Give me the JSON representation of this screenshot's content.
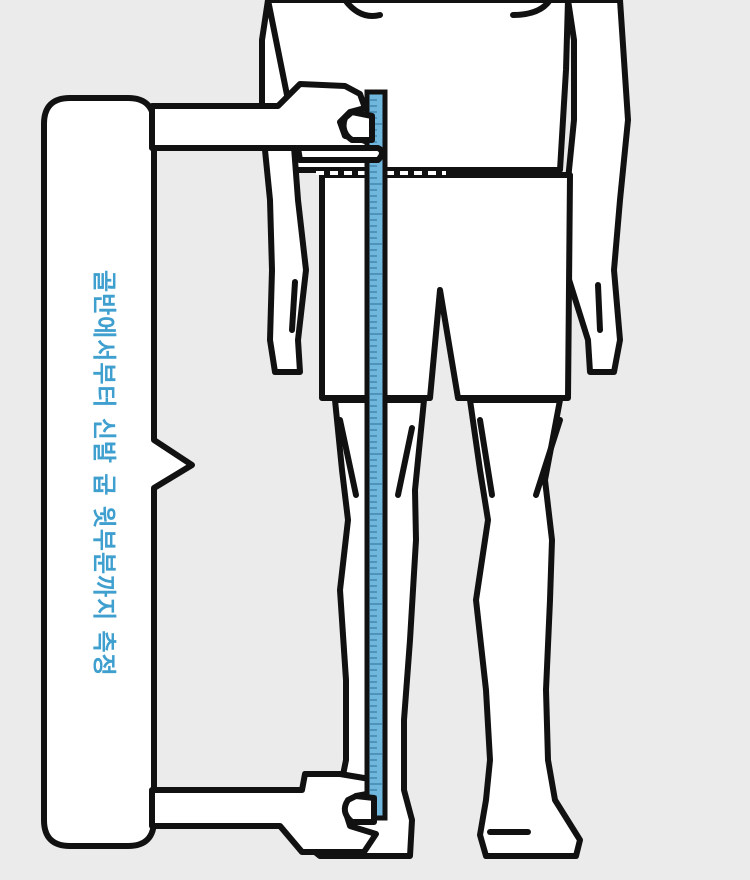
{
  "callout": {
    "text": "골반에서부터 신발 굽 윗부분까지 측정"
  },
  "colors": {
    "background": "#ebebeb",
    "outline": "#111111",
    "ruler": "#6fb7dc",
    "text": "#3f9fcf"
  },
  "icons": [
    "measuring-ruler-icon",
    "hand-icon"
  ]
}
